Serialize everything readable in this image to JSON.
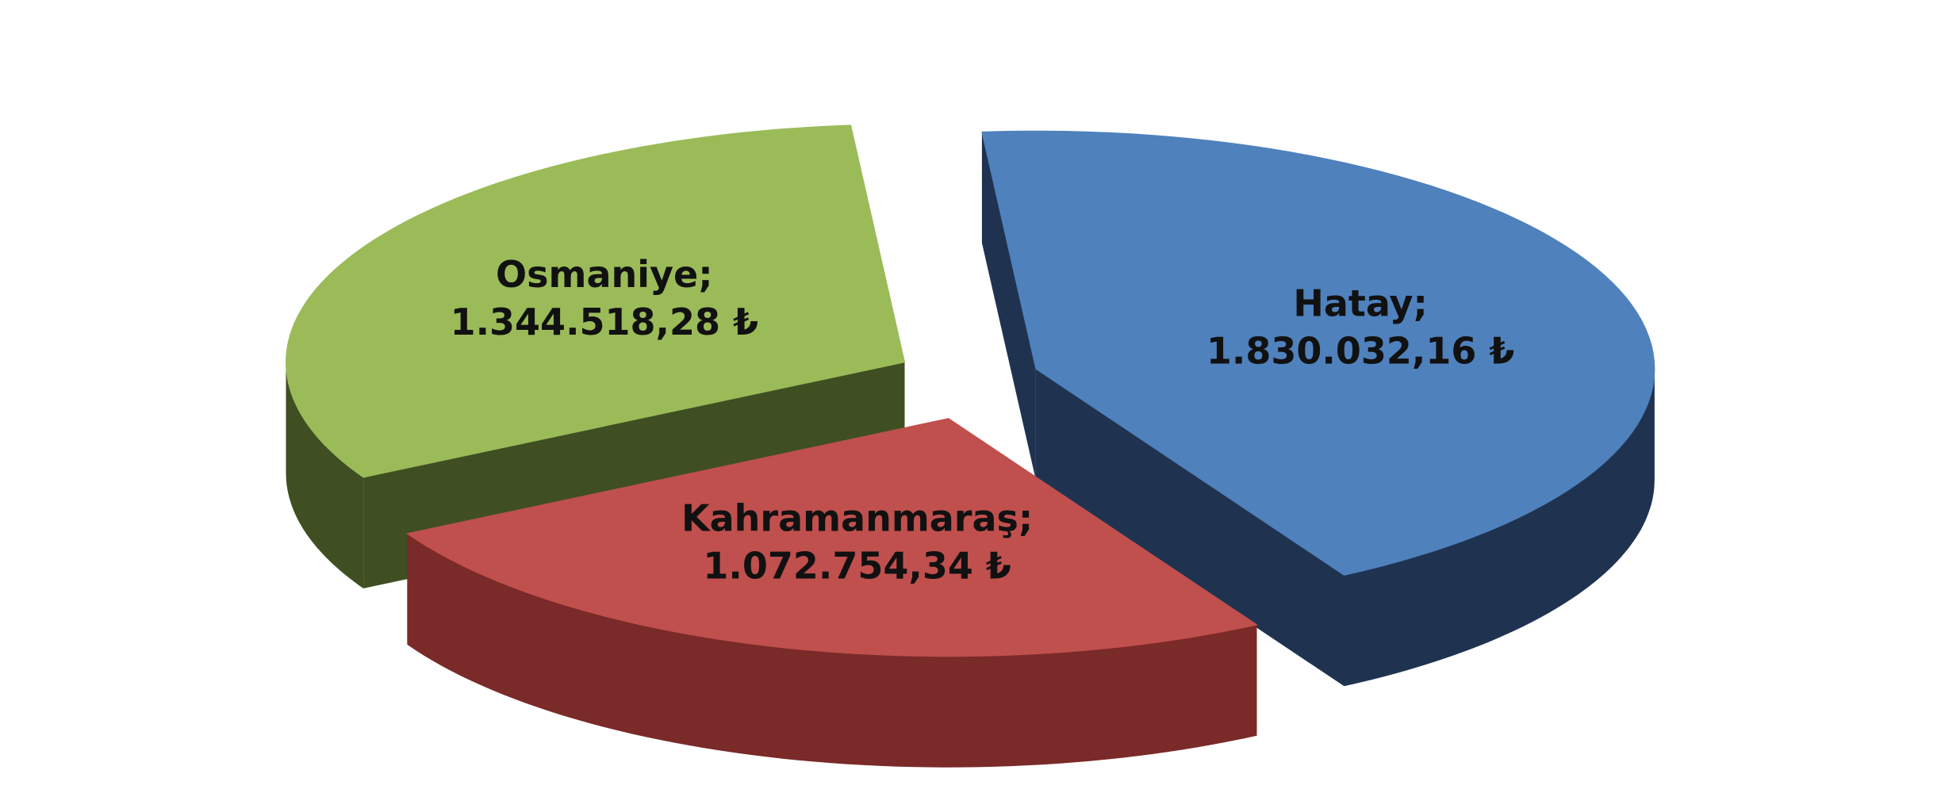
{
  "chart_data": {
    "type": "pie3d",
    "categories": [
      "Hatay",
      "Kahramanmaraş",
      "Osmaniye"
    ],
    "values": [
      1830032.16,
      1072754.34,
      1344518.28
    ],
    "value_labels": [
      "Hatay; 1.830.032,16 ₺",
      "Kahramanmaraş; 1.072.754,34 ₺",
      "Osmaniye; 1.344.518,28 ₺"
    ],
    "colors": [
      "#4f81bd",
      "#c0504d",
      "#9bbb59"
    ],
    "side_colors": [
      "#1f3350",
      "#7a2a28",
      "#3f4f22"
    ]
  }
}
